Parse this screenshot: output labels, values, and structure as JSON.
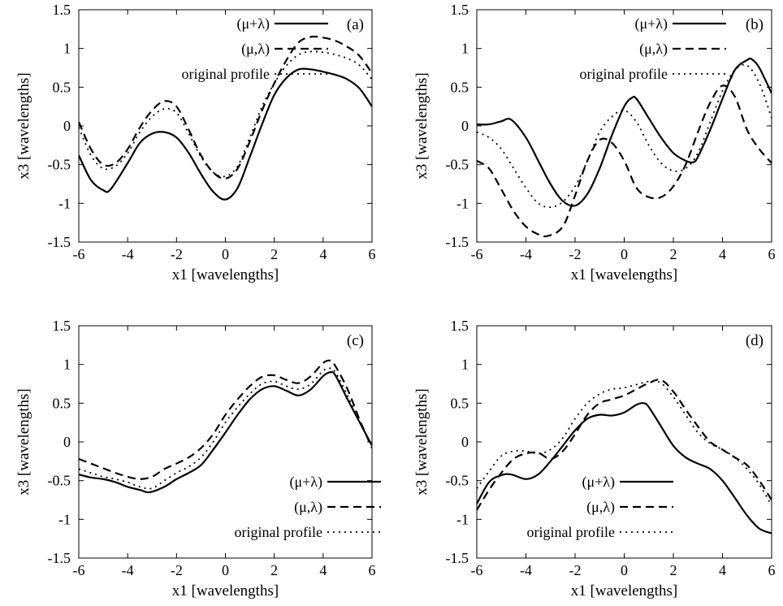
{
  "chart_data": [
    {
      "type": "line",
      "panel_label": "(a)",
      "xlabel": "x1 [wavelengths]",
      "ylabel": "x3 [wavelengths]",
      "xlim": [
        -6,
        6
      ],
      "ylim": [
        -1.5,
        1.5
      ],
      "xticks": [
        "-6",
        "-4",
        "-2",
        "0",
        "2",
        "4",
        "6"
      ],
      "yticks": [
        "-1.5",
        "-1",
        "-0.5",
        "0",
        "0.5",
        "1",
        "1.5"
      ],
      "legend_position": "top-center",
      "series": [
        {
          "name": "(μ+λ)",
          "style": "solid",
          "x": [
            -6,
            -5.5,
            -5,
            -4.7,
            -4,
            -3.5,
            -3,
            -2.5,
            -2,
            -1.5,
            -1,
            -0.5,
            0,
            0.5,
            1,
            1.5,
            2,
            2.5,
            3,
            3.5,
            4,
            4.5,
            5,
            5.5,
            6
          ],
          "y": [
            -0.38,
            -0.7,
            -0.83,
            -0.82,
            -0.48,
            -0.22,
            -0.1,
            -0.08,
            -0.15,
            -0.35,
            -0.62,
            -0.85,
            -0.95,
            -0.8,
            -0.4,
            0.02,
            0.4,
            0.62,
            0.73,
            0.73,
            0.7,
            0.66,
            0.6,
            0.48,
            0.25
          ]
        },
        {
          "name": "(μ,λ)",
          "style": "dashed",
          "x": [
            -6,
            -5.5,
            -5,
            -4.5,
            -4,
            -3.5,
            -3,
            -2.5,
            -2,
            -1.5,
            -1,
            -0.5,
            0,
            0.5,
            1,
            1.5,
            2,
            2.5,
            3,
            3.5,
            4,
            4.5,
            5,
            5.5,
            6
          ],
          "y": [
            0.05,
            -0.3,
            -0.5,
            -0.48,
            -0.3,
            -0.02,
            0.2,
            0.32,
            0.25,
            -0.05,
            -0.38,
            -0.6,
            -0.68,
            -0.55,
            -0.2,
            0.2,
            0.55,
            0.85,
            1.08,
            1.15,
            1.14,
            1.1,
            1.02,
            0.9,
            0.68
          ]
        },
        {
          "name": "original profile",
          "style": "dotted",
          "x": [
            -6,
            -5.5,
            -5,
            -4.5,
            -4,
            -3.5,
            -3,
            -2.5,
            -2,
            -1.5,
            -1,
            -0.5,
            0,
            0.5,
            1,
            1.5,
            2,
            2.5,
            3,
            3.5,
            4,
            4.5,
            5,
            5.5,
            6
          ],
          "y": [
            -0.02,
            -0.38,
            -0.55,
            -0.52,
            -0.35,
            -0.08,
            0.12,
            0.22,
            0.17,
            -0.1,
            -0.4,
            -0.6,
            -0.65,
            -0.52,
            -0.15,
            0.25,
            0.55,
            0.78,
            0.92,
            0.96,
            0.95,
            0.92,
            0.87,
            0.78,
            0.6
          ]
        }
      ]
    },
    {
      "type": "line",
      "panel_label": "(b)",
      "xlabel": "x1 [wavelengths]",
      "ylabel": "x3 [wavelengths]",
      "xlim": [
        -6,
        6
      ],
      "ylim": [
        -1.5,
        1.5
      ],
      "xticks": [
        "-6",
        "-4",
        "-2",
        "0",
        "2",
        "4",
        "6"
      ],
      "yticks": [
        "-1.5",
        "-1",
        "-0.5",
        "0",
        "0.5",
        "1",
        "1.5"
      ],
      "legend_position": "top-center",
      "series": [
        {
          "name": "(μ+λ)",
          "style": "solid",
          "x": [
            -6,
            -5.5,
            -5,
            -4.6,
            -4,
            -3.5,
            -3,
            -2.5,
            -2,
            -1.5,
            -1,
            -0.5,
            0,
            0.3,
            0.5,
            1,
            1.5,
            2,
            2.5,
            2.8,
            3,
            3.5,
            4,
            4.5,
            5,
            5.2,
            5.5,
            6
          ],
          "y": [
            0.02,
            0.02,
            0.06,
            0.08,
            -0.15,
            -0.45,
            -0.75,
            -0.97,
            -1.03,
            -0.88,
            -0.55,
            -0.12,
            0.25,
            0.36,
            0.35,
            0.1,
            -0.15,
            -0.35,
            -0.45,
            -0.47,
            -0.4,
            -0.05,
            0.35,
            0.72,
            0.85,
            0.86,
            0.75,
            0.42
          ]
        },
        {
          "name": "(μ,λ)",
          "style": "dashed",
          "x": [
            -6,
            -5.5,
            -5,
            -4.5,
            -4,
            -3.5,
            -3.1,
            -2.5,
            -2,
            -1.5,
            -1,
            -0.5,
            0,
            0.5,
            1,
            1.5,
            2,
            2.5,
            3,
            3.5,
            4,
            4.5,
            5,
            5.5,
            6
          ],
          "y": [
            -0.45,
            -0.55,
            -0.82,
            -1.1,
            -1.3,
            -1.4,
            -1.42,
            -1.3,
            -0.9,
            -0.45,
            -0.18,
            -0.22,
            -0.45,
            -0.8,
            -0.92,
            -0.92,
            -0.78,
            -0.5,
            -0.08,
            0.3,
            0.52,
            0.38,
            -0.05,
            -0.3,
            -0.48
          ]
        },
        {
          "name": "original profile",
          "style": "dotted",
          "x": [
            -6,
            -5.5,
            -5,
            -4.5,
            -4,
            -3.5,
            -3,
            -2.5,
            -2,
            -1.5,
            -1,
            -0.5,
            0,
            0.5,
            1,
            1.5,
            2,
            2.5,
            3,
            3.5,
            4,
            4.5,
            5,
            5.5,
            6
          ],
          "y": [
            -0.08,
            -0.15,
            -0.3,
            -0.55,
            -0.8,
            -1.0,
            -1.05,
            -0.98,
            -0.78,
            -0.45,
            -0.08,
            0.12,
            0.2,
            0.05,
            -0.25,
            -0.48,
            -0.58,
            -0.55,
            -0.35,
            0.05,
            0.45,
            0.72,
            0.78,
            0.55,
            0.1
          ]
        }
      ]
    },
    {
      "type": "line",
      "panel_label": "(c)",
      "xlabel": "x1 [wavelengths]",
      "ylabel": "x3 [wavelengths]",
      "xlim": [
        -6,
        6
      ],
      "ylim": [
        -1.5,
        1.5
      ],
      "xticks": [
        "-6",
        "-4",
        "-2",
        "0",
        "2",
        "4",
        "6"
      ],
      "yticks": [
        "-1.5",
        "-1",
        "-0.5",
        "0",
        "0.5",
        "1",
        "1.5"
      ],
      "legend_position": "bottom-right",
      "series": [
        {
          "name": "(μ+λ)",
          "style": "solid",
          "x": [
            -6,
            -5.5,
            -5,
            -4.5,
            -4,
            -3.5,
            -3.1,
            -2.5,
            -2,
            -1.5,
            -1,
            -0.5,
            0,
            0.5,
            1,
            1.5,
            2,
            2.5,
            3,
            3.5,
            4,
            4.3,
            4.5,
            5,
            5.5,
            6
          ],
          "y": [
            -0.42,
            -0.46,
            -0.48,
            -0.52,
            -0.58,
            -0.62,
            -0.65,
            -0.58,
            -0.48,
            -0.4,
            -0.3,
            -0.1,
            0.12,
            0.35,
            0.55,
            0.68,
            0.72,
            0.66,
            0.6,
            0.68,
            0.85,
            0.9,
            0.86,
            0.55,
            0.25,
            -0.05
          ]
        },
        {
          "name": "(μ,λ)",
          "style": "dashed",
          "x": [
            -6,
            -5.5,
            -5,
            -4.5,
            -4,
            -3.5,
            -3,
            -2.5,
            -2,
            -1.5,
            -1,
            -0.5,
            0,
            0.5,
            1,
            1.5,
            2,
            2.5,
            3,
            3.5,
            4,
            4.3,
            4.5,
            5,
            5.5,
            6
          ],
          "y": [
            -0.22,
            -0.28,
            -0.34,
            -0.4,
            -0.45,
            -0.48,
            -0.45,
            -0.35,
            -0.28,
            -0.2,
            -0.08,
            0.1,
            0.35,
            0.55,
            0.72,
            0.84,
            0.86,
            0.8,
            0.76,
            0.85,
            1.02,
            1.05,
            0.98,
            0.68,
            0.28,
            -0.08
          ]
        },
        {
          "name": "original profile",
          "style": "dotted",
          "x": [
            -6,
            -5.5,
            -5,
            -4.5,
            -4,
            -3.5,
            -3,
            -2.5,
            -2,
            -1.5,
            -1,
            -0.5,
            0,
            0.5,
            1,
            1.5,
            2,
            2.5,
            3,
            3.5,
            4,
            4.3,
            4.5,
            5,
            5.5,
            6
          ],
          "y": [
            -0.35,
            -0.4,
            -0.45,
            -0.48,
            -0.52,
            -0.58,
            -0.6,
            -0.5,
            -0.4,
            -0.32,
            -0.2,
            0.0,
            0.25,
            0.45,
            0.62,
            0.75,
            0.78,
            0.72,
            0.68,
            0.75,
            0.92,
            0.95,
            0.9,
            0.6,
            0.25,
            -0.05
          ]
        }
      ]
    },
    {
      "type": "line",
      "panel_label": "(d)",
      "xlabel": "x1 [wavelengths]",
      "ylabel": "x3 [wavelengths]",
      "xlim": [
        -6,
        6
      ],
      "ylim": [
        -1.5,
        1.5
      ],
      "xticks": [
        "-6",
        "-4",
        "-2",
        "0",
        "2",
        "4",
        "6"
      ],
      "yticks": [
        "-1.5",
        "-1",
        "-0.5",
        "0",
        "0.5",
        "1",
        "1.5"
      ],
      "legend_position": "bottom-center",
      "series": [
        {
          "name": "(μ+λ)",
          "style": "solid",
          "x": [
            -6,
            -5.5,
            -5,
            -4.6,
            -4,
            -3.5,
            -3,
            -2.5,
            -2,
            -1.5,
            -1,
            -0.5,
            0,
            0.5,
            0.8,
            1,
            1.5,
            2,
            2.5,
            3,
            3.5,
            4,
            4.5,
            5,
            5.5,
            6
          ],
          "y": [
            -0.8,
            -0.52,
            -0.43,
            -0.42,
            -0.48,
            -0.42,
            -0.25,
            -0.05,
            0.15,
            0.3,
            0.35,
            0.34,
            0.38,
            0.48,
            0.5,
            0.45,
            0.2,
            -0.05,
            -0.2,
            -0.28,
            -0.35,
            -0.5,
            -0.72,
            -0.95,
            -1.12,
            -1.18
          ]
        },
        {
          "name": "(μ,λ)",
          "style": "dashed",
          "x": [
            -6,
            -5.5,
            -5,
            -4.5,
            -4,
            -3.5,
            -3,
            -2.5,
            -2,
            -1.5,
            -1,
            -0.5,
            0,
            0.5,
            1,
            1.5,
            2,
            2.5,
            3,
            3.5,
            4,
            4.5,
            5,
            5.5,
            6
          ],
          "y": [
            -0.88,
            -0.62,
            -0.4,
            -0.22,
            -0.15,
            -0.14,
            -0.22,
            -0.12,
            0.1,
            0.35,
            0.5,
            0.55,
            0.6,
            0.68,
            0.76,
            0.8,
            0.65,
            0.42,
            0.2,
            0.0,
            -0.1,
            -0.2,
            -0.3,
            -0.5,
            -0.75
          ]
        },
        {
          "name": "original profile",
          "style": "dotted",
          "x": [
            -6,
            -5.5,
            -5,
            -4.5,
            -4,
            -3.5,
            -3,
            -2.5,
            -2,
            -1.5,
            -1,
            -0.5,
            0,
            0.5,
            1,
            1.5,
            2,
            2.5,
            3,
            3.5,
            4,
            4.5,
            5,
            5.5,
            6
          ],
          "y": [
            -0.6,
            -0.38,
            -0.18,
            -0.12,
            -0.12,
            -0.15,
            -0.1,
            0.05,
            0.3,
            0.5,
            0.62,
            0.68,
            0.7,
            0.74,
            0.78,
            0.76,
            0.58,
            0.35,
            0.12,
            -0.02,
            -0.1,
            -0.2,
            -0.35,
            -0.55,
            -0.82
          ]
        }
      ]
    }
  ]
}
